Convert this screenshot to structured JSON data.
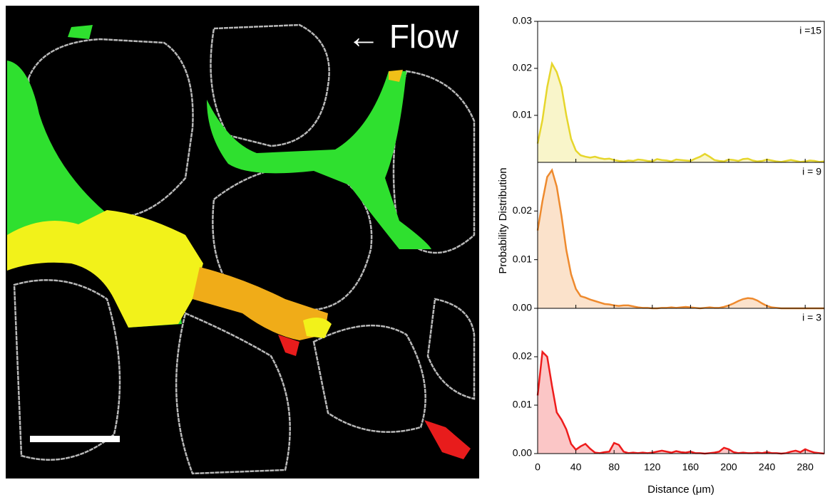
{
  "image": {
    "label": "← Flow"
  },
  "chart_data": [
    {
      "type": "area",
      "annotation": "i =15",
      "color": "#e6d62c",
      "x": [
        0,
        5,
        10,
        15,
        20,
        25,
        30,
        35,
        40,
        45,
        50,
        55,
        60,
        65,
        70,
        75,
        80,
        85,
        90,
        95,
        100,
        105,
        110,
        115,
        120,
        125,
        130,
        135,
        140,
        145,
        150,
        155,
        160,
        165,
        170,
        175,
        180,
        185,
        190,
        195,
        200,
        205,
        210,
        215,
        220,
        225,
        230,
        235,
        240,
        245,
        250,
        255,
        260,
        265,
        270,
        275,
        280,
        285,
        290,
        295,
        300
      ],
      "values": [
        0.004,
        0.009,
        0.016,
        0.021,
        0.0192,
        0.016,
        0.01,
        0.005,
        0.0025,
        0.0015,
        0.0012,
        0.001,
        0.0012,
        0.0009,
        0.0007,
        0.0008,
        0.0005,
        0.0003,
        0.0002,
        0.0004,
        0.0003,
        0.0006,
        0.0005,
        0.0003,
        0.0002,
        0.0007,
        0.0005,
        0.0004,
        0.0002,
        0.0006,
        0.0005,
        0.0004,
        0.0003,
        0.0008,
        0.0012,
        0.0018,
        0.0012,
        0.0005,
        0.0003,
        0.0002,
        0.0006,
        0.0005,
        0.0003,
        0.0007,
        0.0008,
        0.0004,
        0.0002,
        0.0003,
        0.0006,
        0.0004,
        0.0002,
        0.0001,
        0.0003,
        0.0005,
        0.0003,
        0.0001,
        0.0002,
        0.0004,
        0.0003,
        0.0001,
        0.0002
      ],
      "xlim": [
        0,
        300
      ],
      "xticks": [
        0,
        40,
        80,
        120,
        160,
        200,
        240,
        280
      ],
      "ylim": [
        0,
        0.03
      ],
      "yticks": [
        0.01,
        0.02,
        0.03
      ]
    },
    {
      "type": "area",
      "annotation": "i = 9",
      "color": "#ee8a2e",
      "y_label": "Probability Distribution",
      "x": [
        0,
        5,
        10,
        15,
        20,
        25,
        30,
        35,
        40,
        45,
        50,
        55,
        60,
        65,
        70,
        75,
        80,
        85,
        90,
        95,
        100,
        105,
        110,
        115,
        120,
        125,
        130,
        135,
        140,
        145,
        150,
        155,
        160,
        165,
        170,
        175,
        180,
        185,
        190,
        195,
        200,
        205,
        210,
        215,
        220,
        225,
        230,
        235,
        240,
        245,
        250,
        255,
        260,
        265,
        270,
        275,
        280,
        285,
        290,
        295,
        300
      ],
      "values": [
        0.016,
        0.022,
        0.027,
        0.0284,
        0.025,
        0.019,
        0.012,
        0.007,
        0.004,
        0.0025,
        0.0022,
        0.0018,
        0.0015,
        0.0012,
        0.0009,
        0.0008,
        0.0006,
        0.0005,
        0.0006,
        0.0006,
        0.0004,
        0.0002,
        0.0001,
        0.0001,
        0,
        0,
        0.0001,
        0.0001,
        0.0002,
        0.0001,
        0.0002,
        0.0003,
        0.0002,
        0.0001,
        0,
        0.0001,
        0.0002,
        0.0001,
        0.0001,
        0.0003,
        0.0006,
        0.001,
        0.0015,
        0.0019,
        0.0021,
        0.002,
        0.0016,
        0.001,
        0.0005,
        0.0002,
        0.0001,
        0,
        0,
        0,
        0,
        0,
        0,
        0,
        0,
        0,
        0
      ],
      "xlim": [
        0,
        300
      ],
      "xticks": [
        0,
        40,
        80,
        120,
        160,
        200,
        240,
        280
      ],
      "ylim": [
        0,
        0.03
      ],
      "yticks": [
        {
          "value": 0,
          "label": "0.00"
        },
        0.01,
        0.02
      ]
    },
    {
      "type": "area",
      "annotation": "i = 3",
      "color": "#ee1c1c",
      "x_label": "Distance (μm)",
      "x": [
        0,
        5,
        10,
        15,
        20,
        25,
        30,
        35,
        40,
        45,
        50,
        55,
        60,
        65,
        70,
        75,
        80,
        85,
        90,
        95,
        100,
        105,
        110,
        115,
        120,
        125,
        130,
        135,
        140,
        145,
        150,
        155,
        160,
        165,
        170,
        175,
        180,
        185,
        190,
        195,
        200,
        205,
        210,
        215,
        220,
        225,
        230,
        235,
        240,
        245,
        250,
        255,
        260,
        265,
        270,
        275,
        280,
        285,
        290,
        295,
        300
      ],
      "values": [
        0.012,
        0.021,
        0.02,
        0.014,
        0.0085,
        0.007,
        0.005,
        0.002,
        0.0008,
        0.0015,
        0.002,
        0.001,
        0.0002,
        0.0001,
        0.0003,
        0.0004,
        0.0022,
        0.0018,
        0.0004,
        0.0001,
        0.0002,
        0.0001,
        0.0002,
        0.0001,
        0.0002,
        0.0004,
        0.0006,
        0.0004,
        0.0002,
        0.0005,
        0.0003,
        0.0002,
        0.0004,
        0.0001,
        0.0001,
        0,
        0.0001,
        0.0002,
        0.0004,
        0.0012,
        0.0009,
        0.0003,
        0.0001,
        0.0002,
        0.0001,
        0.0001,
        0.0002,
        0.0001,
        0.0003,
        0.0001,
        0.0001,
        0,
        0.0001,
        0.0004,
        0.0006,
        0.0003,
        0.0009,
        0.0005,
        0.0002,
        0.0001,
        0
      ],
      "xlim": [
        0,
        300
      ],
      "xticks": [
        0,
        40,
        80,
        120,
        160,
        200,
        240,
        280
      ],
      "ylim": [
        0,
        0.03
      ],
      "yticks": [
        {
          "value": 0,
          "label": "0.00"
        },
        0.01,
        0.02
      ]
    }
  ]
}
